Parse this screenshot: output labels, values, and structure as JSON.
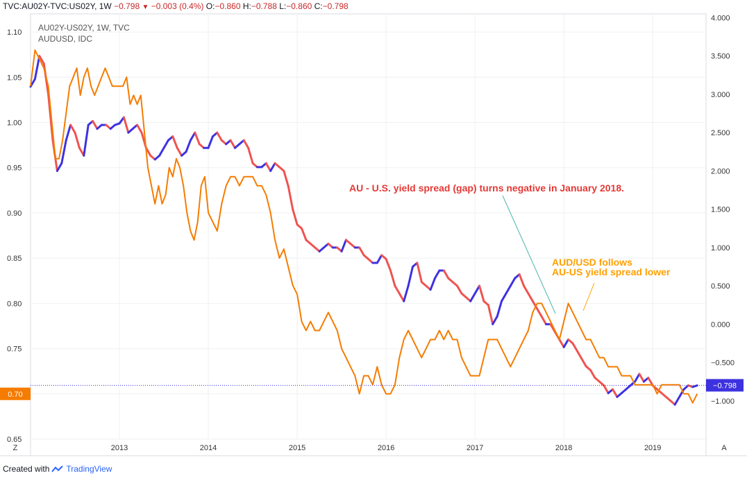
{
  "header": {
    "symbol": "TVC:AU02Y-TVC:US02Y",
    "interval": "1W",
    "last": "−0.798",
    "change": "−0.003 (0.4%)",
    "open_label": "O:",
    "open": "−0.860",
    "high_label": "H:",
    "high": "−0.788",
    "low_label": "L:",
    "low": "−0.860",
    "close_label": "C:",
    "close": "−0.798"
  },
  "footer": {
    "created_with": "Created with",
    "brand": "TradingView"
  },
  "colors": {
    "spread_up": "#ef5350",
    "spread_down": "#3d32e0",
    "audusd": "#f57c00",
    "annotation_red": "#e53935",
    "annotation_orange": "#ffa000",
    "teal": "#4db6ac"
  },
  "chart_data": {
    "type": "line",
    "legend": [
      "AU02Y-US02Y, 1W, TVC",
      "AUDUSD, IDC"
    ],
    "x_ticks": [
      "2013",
      "2014",
      "2015",
      "2016",
      "2017",
      "2018",
      "2019"
    ],
    "left_axis": {
      "ticks": [
        "1.10",
        "1.05",
        "1.00",
        "0.95",
        "0.90",
        "0.85",
        "0.80",
        "0.75",
        "0.70",
        "0.65"
      ],
      "range": [
        0.65,
        1.12
      ],
      "marker": "0.70"
    },
    "right_axis": {
      "ticks": [
        "4.000",
        "3.500",
        "3.000",
        "2.500",
        "2.000",
        "1.500",
        "1.000",
        "0.500",
        "0.000",
        "−0.500",
        "−1.000"
      ],
      "range": [
        -1.5,
        4.05
      ],
      "marker": "−0.798",
      "marker_value": -0.798
    },
    "series": [
      {
        "name": "AUDUSD, IDC",
        "axis": "left",
        "x": [
          2012.0,
          2012.05,
          2012.1,
          2012.15,
          2012.2,
          2012.24,
          2012.28,
          2012.32,
          2012.36,
          2012.4,
          2012.44,
          2012.48,
          2012.52,
          2012.56,
          2012.6,
          2012.64,
          2012.68,
          2012.72,
          2012.76,
          2012.8,
          2012.84,
          2012.88,
          2012.92,
          2012.96,
          2013.0,
          2013.04,
          2013.08,
          2013.12,
          2013.16,
          2013.2,
          2013.24,
          2013.28,
          2013.32,
          2013.36,
          2013.4,
          2013.44,
          2013.48,
          2013.52,
          2013.56,
          2013.6,
          2013.64,
          2013.68,
          2013.72,
          2013.76,
          2013.8,
          2013.84,
          2013.88,
          2013.92,
          2013.96,
          2014.0,
          2014.05,
          2014.1,
          2014.15,
          2014.2,
          2014.25,
          2014.3,
          2014.35,
          2014.4,
          2014.45,
          2014.5,
          2014.55,
          2014.6,
          2014.65,
          2014.7,
          2014.75,
          2014.8,
          2014.85,
          2014.9,
          2014.95,
          2015.0,
          2015.05,
          2015.1,
          2015.15,
          2015.2,
          2015.25,
          2015.3,
          2015.35,
          2015.4,
          2015.45,
          2015.5,
          2015.55,
          2015.6,
          2015.65,
          2015.7,
          2015.75,
          2015.8,
          2015.85,
          2015.9,
          2015.95,
          2016.0,
          2016.05,
          2016.1,
          2016.15,
          2016.2,
          2016.25,
          2016.3,
          2016.35,
          2016.4,
          2016.45,
          2016.5,
          2016.55,
          2016.6,
          2016.65,
          2016.7,
          2016.75,
          2016.8,
          2016.85,
          2016.9,
          2016.95,
          2017.0,
          2017.05,
          2017.1,
          2017.15,
          2017.2,
          2017.25,
          2017.3,
          2017.35,
          2017.4,
          2017.45,
          2017.5,
          2017.55,
          2017.6,
          2017.65,
          2017.7,
          2017.75,
          2017.8,
          2017.85,
          2017.9,
          2017.95,
          2018.0,
          2018.05,
          2018.1,
          2018.15,
          2018.2,
          2018.25,
          2018.3,
          2018.35,
          2018.4,
          2018.45,
          2018.5,
          2018.55,
          2018.6,
          2018.65,
          2018.7,
          2018.75,
          2018.8,
          2018.85,
          2018.9,
          2018.95,
          2019.0,
          2019.05,
          2019.1,
          2019.15,
          2019.2,
          2019.25,
          2019.3,
          2019.35,
          2019.4,
          2019.45,
          2019.5
        ],
        "y": [
          1.04,
          1.08,
          1.07,
          1.06,
          1.04,
          1.0,
          0.96,
          0.96,
          0.98,
          1.01,
          1.04,
          1.05,
          1.06,
          1.03,
          1.05,
          1.06,
          1.04,
          1.03,
          1.04,
          1.05,
          1.06,
          1.05,
          1.04,
          1.04,
          1.04,
          1.04,
          1.05,
          1.02,
          1.03,
          1.02,
          1.03,
          0.99,
          0.95,
          0.93,
          0.91,
          0.93,
          0.91,
          0.92,
          0.95,
          0.94,
          0.96,
          0.95,
          0.93,
          0.9,
          0.88,
          0.87,
          0.89,
          0.93,
          0.94,
          0.9,
          0.89,
          0.88,
          0.91,
          0.93,
          0.94,
          0.94,
          0.93,
          0.94,
          0.94,
          0.94,
          0.93,
          0.93,
          0.92,
          0.9,
          0.87,
          0.85,
          0.86,
          0.84,
          0.82,
          0.81,
          0.78,
          0.77,
          0.78,
          0.77,
          0.77,
          0.78,
          0.79,
          0.78,
          0.77,
          0.75,
          0.74,
          0.73,
          0.72,
          0.7,
          0.72,
          0.72,
          0.71,
          0.73,
          0.71,
          0.7,
          0.7,
          0.71,
          0.74,
          0.76,
          0.77,
          0.76,
          0.75,
          0.74,
          0.75,
          0.76,
          0.76,
          0.77,
          0.76,
          0.77,
          0.76,
          0.76,
          0.74,
          0.73,
          0.72,
          0.72,
          0.72,
          0.74,
          0.76,
          0.76,
          0.76,
          0.75,
          0.74,
          0.73,
          0.74,
          0.75,
          0.76,
          0.77,
          0.79,
          0.8,
          0.8,
          0.79,
          0.78,
          0.77,
          0.76,
          0.78,
          0.8,
          0.79,
          0.78,
          0.77,
          0.76,
          0.76,
          0.75,
          0.74,
          0.74,
          0.73,
          0.73,
          0.73,
          0.72,
          0.72,
          0.72,
          0.71,
          0.71,
          0.71,
          0.71,
          0.71,
          0.7,
          0.71,
          0.71,
          0.71,
          0.71,
          0.71,
          0.7,
          0.7,
          0.69,
          0.7
        ]
      },
      {
        "name": "AU02Y-US02Y, 1W, TVC",
        "axis": "right",
        "x": [
          2012.0,
          2012.05,
          2012.1,
          2012.15,
          2012.2,
          2012.25,
          2012.3,
          2012.35,
          2012.4,
          2012.45,
          2012.5,
          2012.55,
          2012.6,
          2012.65,
          2012.7,
          2012.75,
          2012.8,
          2012.85,
          2012.9,
          2012.95,
          2013.0,
          2013.05,
          2013.1,
          2013.15,
          2013.2,
          2013.25,
          2013.3,
          2013.35,
          2013.4,
          2013.45,
          2013.5,
          2013.55,
          2013.6,
          2013.65,
          2013.7,
          2013.75,
          2013.8,
          2013.85,
          2013.9,
          2013.95,
          2014.0,
          2014.05,
          2014.1,
          2014.15,
          2014.2,
          2014.25,
          2014.3,
          2014.35,
          2014.4,
          2014.45,
          2014.5,
          2014.55,
          2014.6,
          2014.65,
          2014.7,
          2014.75,
          2014.8,
          2014.85,
          2014.9,
          2014.95,
          2015.0,
          2015.05,
          2015.1,
          2015.15,
          2015.2,
          2015.25,
          2015.3,
          2015.35,
          2015.4,
          2015.45,
          2015.5,
          2015.55,
          2015.6,
          2015.65,
          2015.7,
          2015.75,
          2015.8,
          2015.85,
          2015.9,
          2015.95,
          2016.0,
          2016.05,
          2016.1,
          2016.15,
          2016.2,
          2016.25,
          2016.3,
          2016.35,
          2016.4,
          2016.45,
          2016.5,
          2016.55,
          2016.6,
          2016.65,
          2016.7,
          2016.75,
          2016.8,
          2016.85,
          2016.9,
          2016.95,
          2017.0,
          2017.05,
          2017.1,
          2017.15,
          2017.2,
          2017.25,
          2017.3,
          2017.35,
          2017.4,
          2017.45,
          2017.5,
          2017.55,
          2017.6,
          2017.65,
          2017.7,
          2017.75,
          2017.8,
          2017.85,
          2017.9,
          2017.95,
          2018.0,
          2018.05,
          2018.1,
          2018.15,
          2018.2,
          2018.25,
          2018.3,
          2018.35,
          2018.4,
          2018.45,
          2018.5,
          2018.55,
          2018.6,
          2018.65,
          2018.7,
          2018.75,
          2018.8,
          2018.85,
          2018.9,
          2018.95,
          2019.0,
          2019.05,
          2019.1,
          2019.15,
          2019.2,
          2019.25,
          2019.3,
          2019.35,
          2019.4,
          2019.45,
          2019.5
        ],
        "y": [
          3.1,
          3.2,
          3.5,
          3.4,
          3.0,
          2.4,
          2.0,
          2.1,
          2.4,
          2.6,
          2.5,
          2.3,
          2.2,
          2.6,
          2.65,
          2.55,
          2.6,
          2.6,
          2.55,
          2.6,
          2.62,
          2.7,
          2.5,
          2.55,
          2.6,
          2.5,
          2.3,
          2.2,
          2.15,
          2.2,
          2.3,
          2.4,
          2.45,
          2.3,
          2.2,
          2.25,
          2.4,
          2.5,
          2.35,
          2.3,
          2.3,
          2.45,
          2.5,
          2.4,
          2.35,
          2.4,
          2.3,
          2.35,
          2.4,
          2.3,
          2.1,
          2.05,
          2.05,
          2.1,
          2.0,
          2.1,
          2.05,
          2.0,
          1.8,
          1.5,
          1.3,
          1.25,
          1.1,
          1.05,
          1.0,
          0.95,
          1.0,
          1.05,
          1.0,
          1.0,
          0.95,
          1.1,
          1.05,
          1.0,
          1.0,
          0.9,
          0.85,
          0.8,
          0.8,
          0.9,
          0.85,
          0.7,
          0.5,
          0.4,
          0.3,
          0.5,
          0.75,
          0.8,
          0.55,
          0.5,
          0.45,
          0.6,
          0.7,
          0.7,
          0.6,
          0.55,
          0.5,
          0.4,
          0.35,
          0.3,
          0.4,
          0.5,
          0.3,
          0.25,
          0.0,
          0.1,
          0.3,
          0.4,
          0.5,
          0.6,
          0.65,
          0.5,
          0.4,
          0.3,
          0.2,
          0.1,
          0.0,
          0.0,
          -0.1,
          -0.2,
          -0.3,
          -0.2,
          -0.25,
          -0.35,
          -0.45,
          -0.55,
          -0.6,
          -0.7,
          -0.75,
          -0.8,
          -0.9,
          -0.85,
          -0.95,
          -0.9,
          -0.85,
          -0.8,
          -0.75,
          -0.65,
          -0.75,
          -0.7,
          -0.8,
          -0.85,
          -0.9,
          -0.95,
          -1.0,
          -1.05,
          -0.95,
          -0.85,
          -0.8,
          -0.82,
          -0.8
        ]
      }
    ],
    "annotations": [
      {
        "text": "AU - U.S. yield spread (gap) turns negative in January 2018.",
        "color": "red"
      },
      {
        "text": "AUD/USD follows",
        "color": "orange"
      },
      {
        "text": "AU-US yield spread lower",
        "color": "orange"
      }
    ],
    "corner_left": "Z",
    "corner_right": "A"
  }
}
